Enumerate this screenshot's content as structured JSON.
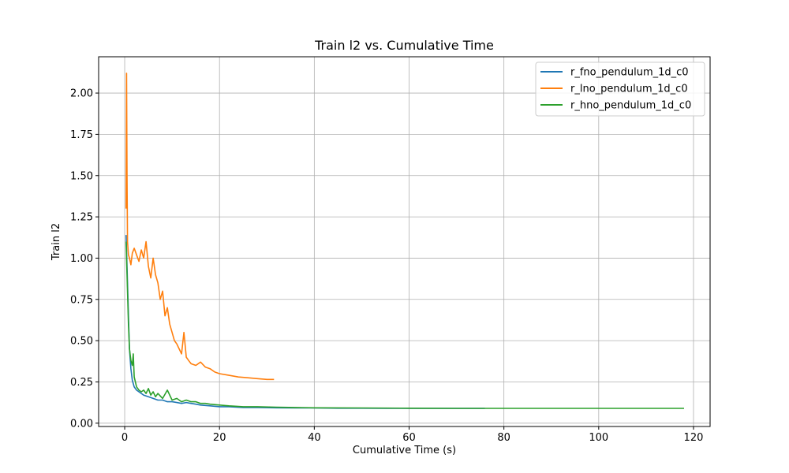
{
  "chart_data": {
    "type": "line",
    "title": "Train l2 vs. Cumulative Time",
    "xlabel": "Cumulative Time (s)",
    "ylabel": "Train l2",
    "xlim": [
      -5.5,
      123.5
    ],
    "ylim": [
      -0.02,
      2.22
    ],
    "xticks": [
      0,
      20,
      40,
      60,
      80,
      100,
      120
    ],
    "xtick_labels": [
      "0",
      "20",
      "40",
      "60",
      "80",
      "100",
      "120"
    ],
    "yticks": [
      0.0,
      0.25,
      0.5,
      0.75,
      1.0,
      1.25,
      1.5,
      1.75,
      2.0
    ],
    "ytick_labels": [
      "0.00",
      "0.25",
      "0.50",
      "0.75",
      "1.00",
      "1.25",
      "1.50",
      "1.75",
      "2.00"
    ],
    "grid": true,
    "legend_position": "top-right",
    "series": [
      {
        "name": "r_fno_pendulum_1d_c0",
        "color": "#1f77b4",
        "x": [
          0.3,
          0.5,
          0.8,
          1.0,
          1.3,
          1.6,
          2.0,
          2.5,
          3.0,
          3.5,
          4.0,
          5.0,
          6.0,
          7.0,
          8.0,
          9.0,
          10.0,
          11.0,
          12.0,
          13.0,
          14.0,
          15.0,
          16.0,
          18.0,
          20.0,
          22.0,
          25.0,
          28.0,
          32.0,
          36.0,
          40.0,
          45.0,
          50.0,
          55.0,
          60.0,
          65.0,
          70.0,
          76.0
        ],
        "y": [
          1.14,
          0.95,
          0.65,
          0.45,
          0.33,
          0.26,
          0.22,
          0.2,
          0.19,
          0.18,
          0.17,
          0.16,
          0.15,
          0.14,
          0.14,
          0.13,
          0.13,
          0.125,
          0.12,
          0.125,
          0.12,
          0.115,
          0.11,
          0.105,
          0.1,
          0.1,
          0.095,
          0.095,
          0.093,
          0.092,
          0.092,
          0.091,
          0.091,
          0.09,
          0.09,
          0.09,
          0.09,
          0.09
        ]
      },
      {
        "name": "r_lno_pendulum_1d_c0",
        "color": "#ff7f0e",
        "x": [
          0.3,
          0.4,
          0.5,
          0.6,
          0.8,
          1.0,
          1.3,
          1.6,
          2.0,
          2.5,
          3.0,
          3.5,
          4.0,
          4.5,
          5.0,
          5.5,
          6.0,
          6.5,
          7.0,
          7.5,
          8.0,
          8.5,
          9.0,
          9.5,
          10.0,
          10.5,
          11.0,
          11.5,
          12.0,
          12.5,
          13.0,
          13.5,
          14.0,
          15.0,
          16.0,
          17.0,
          18.0,
          19.0,
          20.0,
          22.0,
          24.0,
          26.0,
          28.0,
          30.0,
          31.5
        ],
        "y": [
          1.3,
          2.12,
          1.5,
          1.1,
          1.02,
          1.0,
          0.96,
          1.03,
          1.06,
          1.02,
          0.98,
          1.05,
          1.0,
          1.1,
          0.95,
          0.88,
          1.0,
          0.9,
          0.85,
          0.75,
          0.8,
          0.65,
          0.7,
          0.6,
          0.55,
          0.5,
          0.48,
          0.45,
          0.42,
          0.55,
          0.4,
          0.38,
          0.36,
          0.35,
          0.37,
          0.34,
          0.33,
          0.31,
          0.3,
          0.29,
          0.28,
          0.275,
          0.27,
          0.265,
          0.265
        ]
      },
      {
        "name": "r_hno_pendulum_1d_c0",
        "color": "#2ca02c",
        "x": [
          0.3,
          0.5,
          0.8,
          1.0,
          1.3,
          1.6,
          1.8,
          2.0,
          2.5,
          3.0,
          3.5,
          4.0,
          4.5,
          5.0,
          5.5,
          6.0,
          6.5,
          7.0,
          8.0,
          9.0,
          10.0,
          11.0,
          12.0,
          13.0,
          14.0,
          15.0,
          16.0,
          17.0,
          18.0,
          20.0,
          22.0,
          25.0,
          28.0,
          32.0,
          36.0,
          40.0,
          50.0,
          60.0,
          70.0,
          80.0,
          90.0,
          100.0,
          110.0,
          118.0
        ],
        "y": [
          1.1,
          0.9,
          0.6,
          0.45,
          0.38,
          0.35,
          0.42,
          0.28,
          0.22,
          0.2,
          0.19,
          0.2,
          0.18,
          0.21,
          0.17,
          0.19,
          0.16,
          0.18,
          0.15,
          0.2,
          0.14,
          0.15,
          0.13,
          0.14,
          0.13,
          0.13,
          0.12,
          0.12,
          0.115,
          0.11,
          0.105,
          0.1,
          0.1,
          0.097,
          0.095,
          0.093,
          0.092,
          0.091,
          0.09,
          0.09,
          0.09,
          0.09,
          0.09,
          0.09
        ]
      }
    ]
  }
}
